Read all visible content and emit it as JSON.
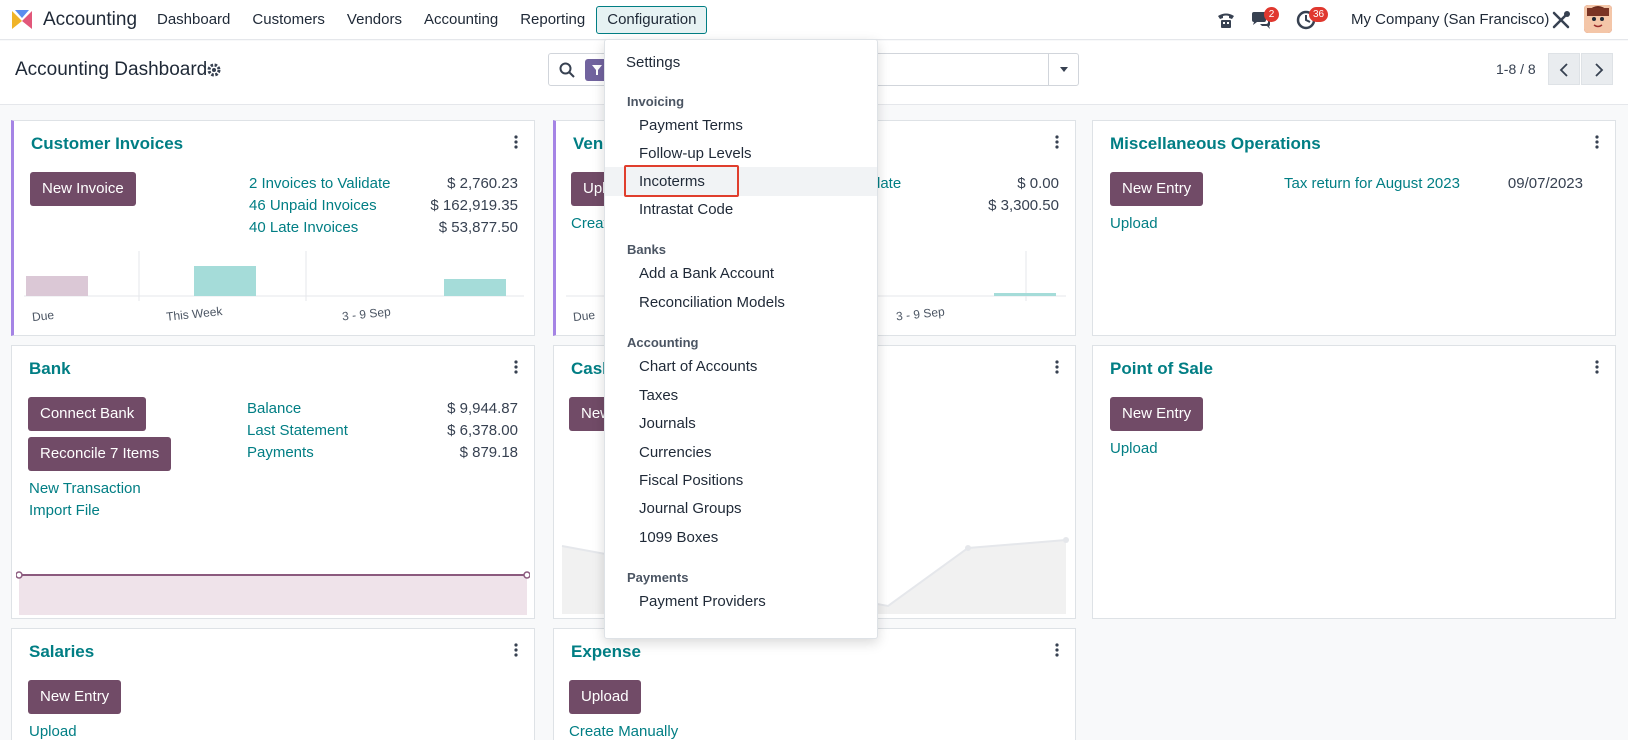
{
  "navbar": {
    "app_name": "Accounting",
    "menus": [
      "Dashboard",
      "Customers",
      "Vendors",
      "Accounting",
      "Reporting",
      "Configuration"
    ],
    "active_menu": "Configuration",
    "messages_badge": "2",
    "activities_badge": "36",
    "company": "My Company (San Francisco)"
  },
  "control": {
    "title": "Accounting Dashboard",
    "pager": "1-8 / 8"
  },
  "dropdown": {
    "settings": "Settings",
    "sections": [
      {
        "header": "Invoicing",
        "items": [
          "Payment Terms",
          "Follow-up Levels",
          "Incoterms",
          "Intrastat Code"
        ]
      },
      {
        "header": "Banks",
        "items": [
          "Add a Bank Account",
          "Reconciliation Models"
        ]
      },
      {
        "header": "Accounting",
        "items": [
          "Chart of Accounts",
          "Taxes",
          "Journals",
          "Currencies",
          "Fiscal Positions",
          "Journal Groups",
          "1099 Boxes"
        ]
      },
      {
        "header": "Payments",
        "items": [
          "Payment Providers"
        ]
      }
    ],
    "highlighted": "Incoterms"
  },
  "cards": {
    "customer_invoices": {
      "title": "Customer Invoices",
      "button": "New Invoice",
      "links": [
        {
          "label": "2 Invoices to Validate",
          "amount": "$ 2,760.23"
        },
        {
          "label": "46 Unpaid Invoices",
          "amount": "$ 162,919.35"
        },
        {
          "label": "40 Late Invoices",
          "amount": "$ 53,877.50"
        }
      ],
      "chart_labels": [
        "Due",
        "This Week",
        "3 - 9 Sep"
      ]
    },
    "vendor_bills": {
      "title": "Vend",
      "button": "Upl",
      "link": "Creat",
      "links": [
        {
          "label": "date",
          "amount": "$ 0.00"
        },
        {
          "label": "",
          "amount": "$ 3,300.50"
        }
      ],
      "chart_labels": [
        "Due",
        "3 - 9 Sep"
      ]
    },
    "misc": {
      "title": "Miscellaneous Operations",
      "button": "New Entry",
      "link": "Upload",
      "entry_label": "Tax return for August 2023",
      "entry_date": "09/07/2023"
    },
    "bank": {
      "title": "Bank",
      "buttons": [
        "Connect Bank",
        "Reconcile 7 Items"
      ],
      "links": [
        "New Transaction",
        "Import File"
      ],
      "stats": [
        {
          "label": "Balance",
          "amount": "$ 9,944.87"
        },
        {
          "label": "Last Statement",
          "amount": "$ 6,378.00"
        },
        {
          "label": "Payments",
          "amount": "$ 879.18"
        }
      ]
    },
    "cash": {
      "title": "Cash",
      "button": "New"
    },
    "pos": {
      "title": "Point of Sale",
      "button": "New Entry",
      "link": "Upload"
    },
    "salaries": {
      "title": "Salaries",
      "button": "New Entry",
      "link": "Upload"
    },
    "expense": {
      "title": "Expense",
      "button": "Upload",
      "link": "Create Manually"
    }
  }
}
